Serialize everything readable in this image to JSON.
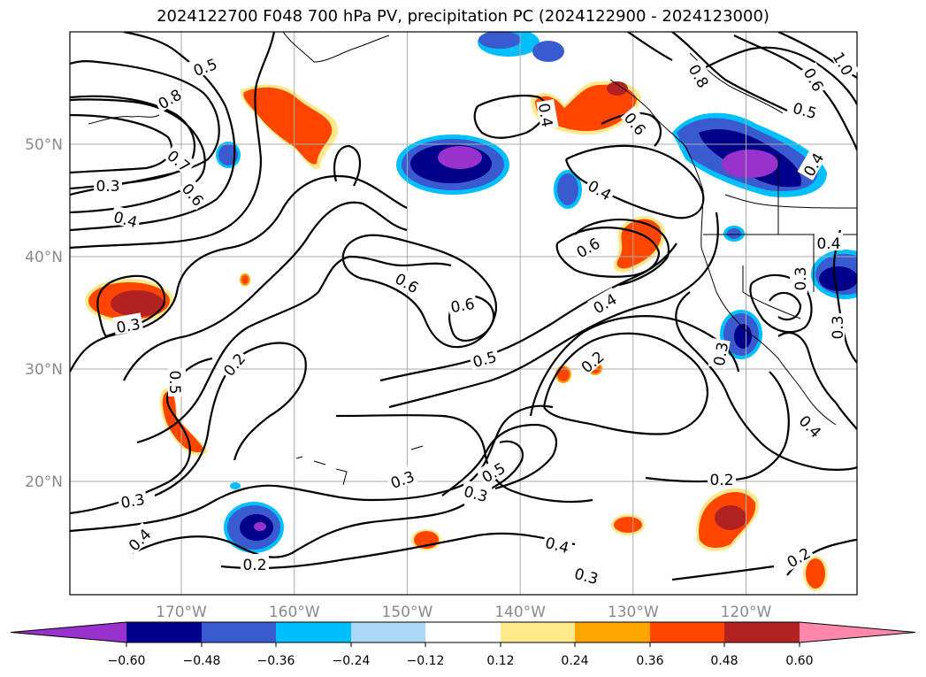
{
  "title": "2024122700 F048 700 hPa PV, precipitation PC (2024122900 - 2024123000)",
  "map": {
    "lat_labels": [
      {
        "lat": 50,
        "text": "50°N"
      },
      {
        "lat": 40,
        "text": "40°N"
      },
      {
        "lat": 30,
        "text": "30°N"
      },
      {
        "lat": 20,
        "text": "20°N"
      }
    ],
    "lon_labels": [
      {
        "lon": -170,
        "text": "170°W"
      },
      {
        "lon": -160,
        "text": "160°W"
      },
      {
        "lon": -150,
        "text": "150°W"
      },
      {
        "lon": -140,
        "text": "140°W"
      },
      {
        "lon": -130,
        "text": "130°W"
      },
      {
        "lon": -120,
        "text": "120°W"
      }
    ],
    "grid": true,
    "contour_labels": [
      "0.5",
      "0.8",
      "0.7",
      "0.6",
      "0.3",
      "0.4",
      "0.3",
      "0.5",
      "0.2",
      "0.6",
      "0.6",
      "0.5",
      "0.4",
      "0.6",
      "0.4",
      "0.2",
      "0.3",
      "0.5",
      "0.3",
      "0.4",
      "0.2",
      "0.3",
      "0.4",
      "0.3",
      "0.2",
      "0.3",
      "0.2",
      "0.4",
      "0.3",
      "0.3",
      "0.4",
      "0.6",
      "0.8",
      "0.6",
      "0.5",
      "1.0",
      "0.4",
      "0.4"
    ]
  },
  "colorbar": {
    "ticks": [
      "−0.60",
      "−0.48",
      "−0.36",
      "−0.24",
      "−0.12",
      "0.12",
      "0.24",
      "0.36",
      "0.48",
      "0.60"
    ],
    "colors": [
      "#9932cc",
      "#00008b",
      "#3a5bd0",
      "#00bfff",
      "#add8f5",
      "#ffffff",
      "#ffe98a",
      "#ffa500",
      "#ff4500",
      "#b22222",
      "#ff88aa"
    ]
  }
}
